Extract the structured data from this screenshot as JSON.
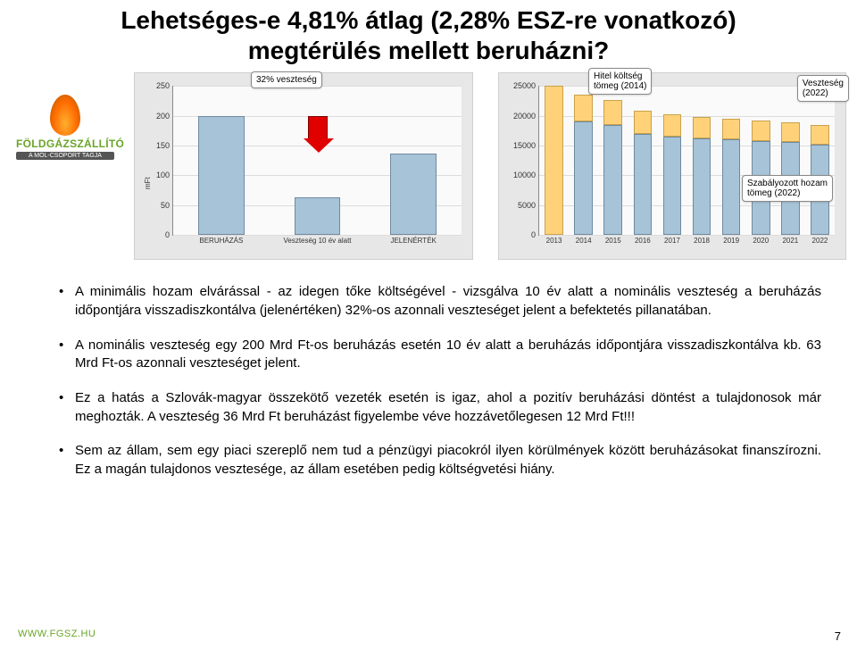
{
  "title_line1": "Lehetséges-e 4,81% átlag (2,28% ESZ-re vonatkozó)",
  "title_line2": "megtérülés mellett beruházni?",
  "logo_text": "FÖLDGÁZSZÁLLÍTÓ",
  "logo_sub": "A MOL-CSOPORT TAGJA",
  "footer_url": "WWW.FGSZ.HU",
  "page_number": "7",
  "chart1": {
    "y_label": "mFt",
    "ylim_max": 250,
    "yticks": [
      0,
      50,
      100,
      150,
      200,
      250
    ],
    "categories": [
      "BERUHÁZÁS",
      "Veszteség 10 év alatt",
      "JELENÉRTÉK"
    ],
    "values": [
      200,
      63,
      137
    ],
    "bar_fill": "#a7c3d8",
    "bar_border": "#6f8aa0",
    "plot_bg": "#fafafa",
    "grid_color": "#dcdcdc",
    "callout_label": "32% veszteség",
    "arrow_color": "#e00000"
  },
  "chart2": {
    "ylim_max": 25000,
    "yticks": [
      0,
      5000,
      10000,
      15000,
      20000,
      25000
    ],
    "categories": [
      "2013",
      "2014",
      "2015",
      "2016",
      "2017",
      "2018",
      "2019",
      "2020",
      "2021",
      "2022"
    ],
    "series": [
      {
        "name": "top",
        "values": [
          25000,
          4500,
          4200,
          3900,
          3700,
          3600,
          3500,
          3400,
          3300,
          3200
        ],
        "fill": "#ffd27a",
        "border": "#caa14a"
      },
      {
        "name": "bottom",
        "values": [
          0,
          19000,
          18400,
          17000,
          16500,
          16200,
          16000,
          15800,
          15600,
          15200
        ],
        "fill": "#a7c3d8",
        "border": "#6f8aa0"
      }
    ],
    "plot_bg": "#fafafa",
    "grid_color": "#dcdcdc",
    "callouts": [
      {
        "label": "Hitel költség\ntömeg (2014)",
        "key": "hitel"
      },
      {
        "label": "Veszteség\n(2022)",
        "key": "veszteseg"
      },
      {
        "label": "Szabályozott hozam\ntömeg (2022)",
        "key": "szab"
      }
    ]
  },
  "bullets": [
    "A minimális hozam elvárással - az idegen tőke költségével - vizsgálva 10 év alatt a nominális veszteség a beruházás időpontjára visszadiszkontálva (jelenértéken) 32%-os azonnali veszteséget jelent a befektetés pillanatában.",
    "A nominális veszteség egy 200 Mrd Ft-os beruházás esetén 10 év alatt a beruházás időpontjára visszadiszkontálva kb. 63 Mrd Ft-os azonnali veszteséget jelent.",
    "Ez a hatás a Szlovák-magyar összekötő vezeték esetén is igaz, ahol a pozitív beruházási döntést a tulajdonosok már meghozták. A veszteség 36 Mrd Ft beruházást figyelembe véve hozzávetőlegesen 12 Mrd Ft!!!",
    "Sem az állam, sem egy piaci szereplő nem tud a pénzügyi piacokról ilyen körülmények között beruházásokat finanszírozni. Ez a magán tulajdonos vesztesége, az állam esetében pedig költségvetési hiány."
  ]
}
